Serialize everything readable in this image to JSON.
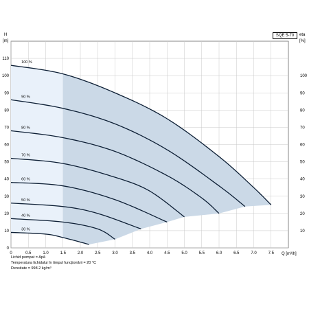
{
  "chart_data": {
    "type": "area",
    "model": "SQE 5-70",
    "ylabel_left": "H",
    "yunit_left": "[m]",
    "ylabel_right": "eta",
    "yunit_right": "[%]",
    "xlabel": "Q [m³/h]",
    "xlim": [
      0,
      8
    ],
    "ylim": [
      0,
      120
    ],
    "xticks": [
      "0",
      "0.5",
      "1.0",
      "1.5",
      "2.0",
      "2.5",
      "3.0",
      "3.5",
      "4.0",
      "4.5",
      "5.0",
      "5.5",
      "6.0",
      "6.5",
      "7.0",
      "7.5"
    ],
    "yticks_left": [
      "0",
      "10",
      "20",
      "30",
      "40",
      "50",
      "60",
      "70",
      "80",
      "90",
      "100",
      "110"
    ],
    "yticks_right": [
      "10",
      "20",
      "30",
      "40",
      "50",
      "60",
      "70",
      "80",
      "90",
      "100"
    ],
    "grid": true,
    "series": [
      {
        "name": "100 %",
        "x": [
          0,
          1.5,
          3.0,
          4.5,
          6.0,
          7.0,
          7.5
        ],
        "y": [
          106,
          101,
          90,
          75,
          53,
          35,
          25
        ]
      },
      {
        "name": "90 %",
        "x": [
          0,
          1.5,
          3.0,
          4.5,
          6.0,
          6.75
        ],
        "y": [
          86,
          81,
          72,
          57,
          36,
          24
        ]
      },
      {
        "name": "80 %",
        "x": [
          0,
          1.5,
          3.0,
          4.5,
          5.5,
          6.0
        ],
        "y": [
          68,
          64,
          56,
          42,
          29,
          20
        ]
      },
      {
        "name": "70 %",
        "x": [
          0,
          1.5,
          3.0,
          4.0,
          5.0
        ],
        "y": [
          52,
          49,
          41,
          33,
          18
        ]
      },
      {
        "name": "60 %",
        "x": [
          0,
          1.5,
          3.0,
          4.5
        ],
        "y": [
          38,
          36,
          28,
          15
        ]
      },
      {
        "name": "50 %",
        "x": [
          0,
          1.5,
          2.5,
          3.75
        ],
        "y": [
          26,
          24,
          20,
          11
        ]
      },
      {
        "name": "40 %",
        "x": [
          0,
          1.5,
          2.5,
          3.0
        ],
        "y": [
          17,
          15,
          11,
          5
        ]
      },
      {
        "name": "30 %",
        "x": [
          0,
          1.0,
          1.5,
          2.25
        ],
        "y": [
          9,
          8,
          6,
          2
        ]
      }
    ],
    "operating_region_start_q": 1.5,
    "colors": {
      "curve": "#0d1f35",
      "region": "#cbd9e7",
      "region_light": "#e9f1fa",
      "grid": "#c8c8c8"
    }
  },
  "notes": [
    "Lichid pompat = Apă",
    "Temperatura lichidului în timpul funcționării = 20 °C",
    "Densitate = 998.2 kg/m³"
  ]
}
